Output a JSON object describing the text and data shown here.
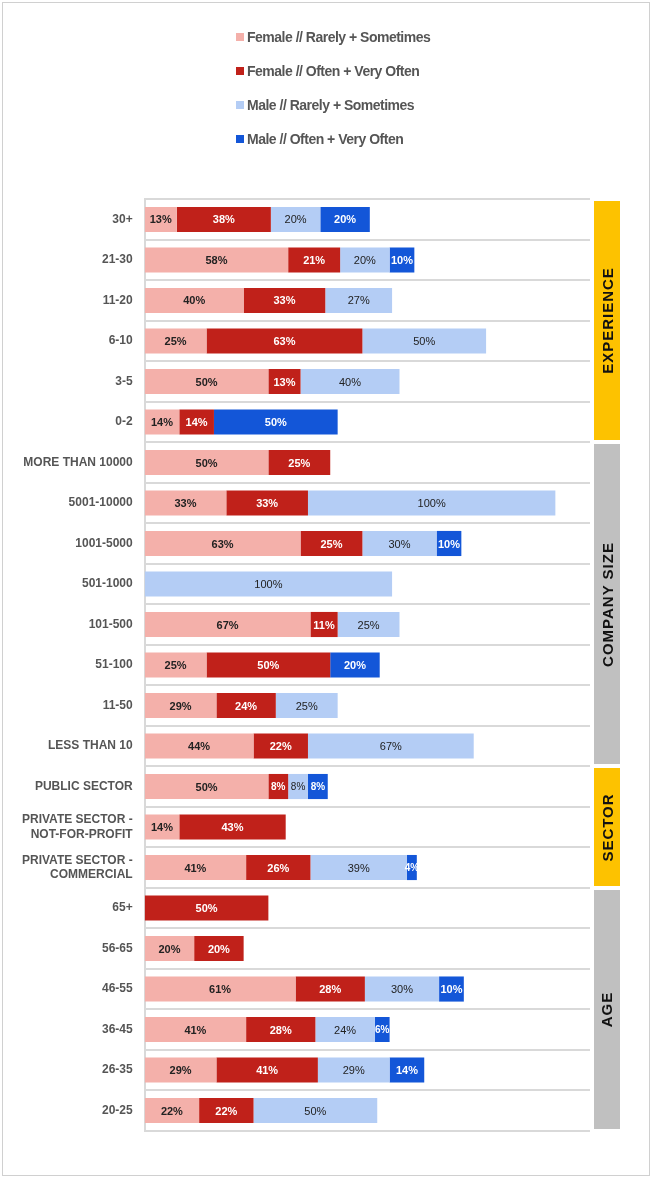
{
  "chart_data": {
    "type": "bar",
    "orientation": "horizontal",
    "stacked": true,
    "legend": "top",
    "grid": "y",
    "tick_labels": "y",
    "categories": [
      "30+",
      "21-30",
      "11-20",
      "6-10",
      "3-5",
      "0-2",
      "MORE THAN 10000",
      "5001-10000",
      "1001-5000",
      "501-1000",
      "101-500",
      "51-100",
      "11-50",
      "LESS THAN 10",
      "PUBLIC SECTOR",
      "PRIVATE SECTOR - NOT-FOR-PROFIT",
      "PRIVATE SECTOR - COMMERCIAL",
      "65+",
      "56-65",
      "46-55",
      "36-45",
      "26-35",
      "20-25"
    ],
    "series": [
      {
        "name": "Female //  Rarely + Sometimes",
        "color": "#f4b0aa",
        "values": [
          13,
          58,
          40,
          25,
          50,
          14,
          50,
          33,
          63,
          null,
          67,
          25,
          29,
          44,
          50,
          14,
          41,
          null,
          20,
          61,
          41,
          29,
          22
        ],
        "value_labels": [
          "13%",
          "58%",
          "40%",
          "25%",
          "50%",
          "14%",
          "50%",
          "33%",
          "63%",
          null,
          "67%",
          "25%",
          "29%",
          "44%",
          "50%",
          "14%",
          "41%",
          null,
          "20%",
          "61%",
          "41%",
          "29%",
          "22%"
        ]
      },
      {
        "name": "Female //  Often + Very Often",
        "color": "#c0211a",
        "values": [
          38,
          21,
          33,
          63,
          13,
          14,
          25,
          33,
          25,
          null,
          11,
          50,
          24,
          22,
          8,
          43,
          26,
          50,
          20,
          28,
          28,
          41,
          22
        ],
        "value_labels": [
          "38%",
          "21%",
          "33%",
          "63%",
          "13%",
          "14%",
          "25%",
          "33%",
          "25%",
          null,
          "11%",
          "50%",
          "24%",
          "22%",
          "8%",
          "43%",
          "26%",
          "50%",
          "20%",
          "28%",
          "28%",
          "41%",
          "22%"
        ]
      },
      {
        "name": "Male //  Rarely + Sometimes",
        "color": "#b4cdf5",
        "values": [
          20,
          20,
          27,
          50,
          40,
          null,
          null,
          100,
          30,
          100,
          25,
          null,
          25,
          67,
          8,
          null,
          39,
          null,
          null,
          30,
          24,
          29,
          50
        ],
        "value_labels": [
          "20%",
          "20%",
          "27%",
          "50%",
          "40%",
          null,
          null,
          "100%",
          "30%",
          "100%",
          "25%",
          null,
          "25%",
          "67%",
          "8%",
          null,
          "39%",
          null,
          null,
          "30%",
          "24%",
          "29%",
          "50%"
        ]
      },
      {
        "name": "Male //  Often + Very Often",
        "color": "#1356d8",
        "values": [
          20,
          10,
          null,
          null,
          null,
          50,
          null,
          null,
          10,
          null,
          null,
          20,
          null,
          null,
          8,
          null,
          4,
          null,
          null,
          10,
          6,
          14,
          null
        ],
        "value_labels": [
          "20%",
          "10%",
          null,
          null,
          null,
          "50%",
          null,
          null,
          "10%",
          null,
          null,
          "20%",
          null,
          null,
          "8%",
          null,
          "4%",
          null,
          null,
          "10%",
          "6%",
          "14%",
          null
        ]
      }
    ],
    "annotations": [
      "EXPERIENCE",
      "COMPANY SIZE",
      "SECTOR",
      "AGE"
    ]
  }
}
